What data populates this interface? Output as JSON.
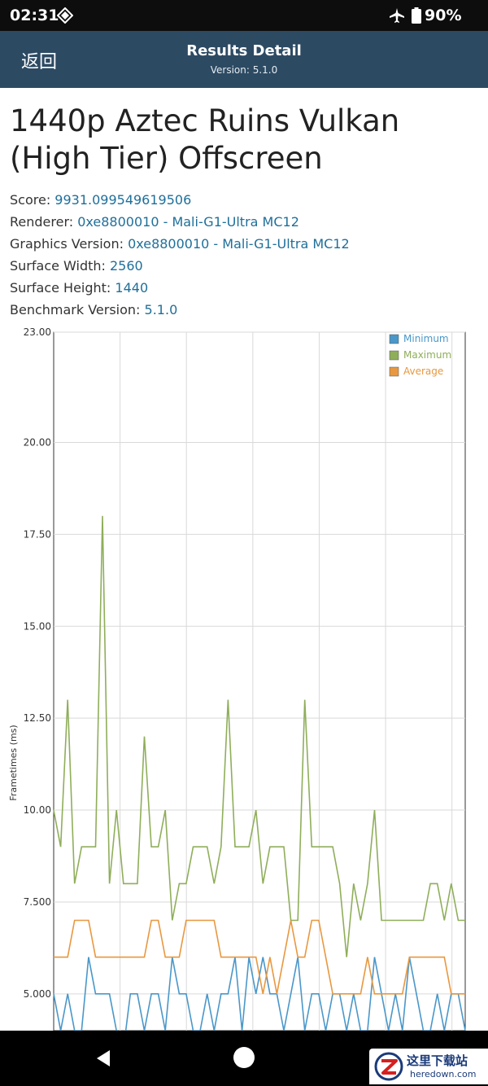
{
  "status_bar": {
    "time": "02:31",
    "battery": "90%"
  },
  "app_bar": {
    "back_label": "返回",
    "title": "Results Detail",
    "version": "Version: 5.1.0"
  },
  "test": {
    "title": "1440p Aztec Ruins Vulkan (High Tier) Offscreen",
    "fields": [
      {
        "label": "Score: ",
        "value": "9931.099549619506"
      },
      {
        "label": "Renderer: ",
        "value": "0xe8800010 - Mali-G1-Ultra MC12"
      },
      {
        "label": "Graphics Version: ",
        "value": "0xe8800010 - Mali-G1-Ultra MC12"
      },
      {
        "label": "Surface Width: ",
        "value": "2560"
      },
      {
        "label": "Surface Height: ",
        "value": "1440"
      },
      {
        "label": "Benchmark Version: ",
        "value": "5.1.0"
      }
    ]
  },
  "chart_data": {
    "type": "line",
    "ylabel": "Frametimes (ms)",
    "yticks": [
      "23.00",
      "20.00",
      "17.50",
      "15.00",
      "12.50",
      "10.00",
      "7.500",
      "5.000"
    ],
    "ylim": [
      4.0,
      23.0
    ],
    "grid": true,
    "legend_position": "top-right",
    "x_count": 60,
    "series": [
      {
        "name": "Minimum",
        "color": "#4a97c9",
        "values": [
          5,
          4,
          5,
          4,
          4,
          6,
          5,
          5,
          5,
          4,
          3.5,
          5,
          5,
          4,
          5,
          5,
          4,
          6,
          5,
          5,
          4,
          4,
          5,
          4,
          5,
          5,
          6,
          4,
          6,
          5,
          6,
          5,
          5,
          4,
          5,
          6,
          4,
          5,
          5,
          4,
          5,
          5,
          4,
          5,
          4,
          4,
          6,
          5,
          4,
          5,
          4,
          6,
          5,
          4,
          4,
          5,
          4,
          5,
          5,
          4
        ]
      },
      {
        "name": "Maximum",
        "color": "#8fae5a",
        "values": [
          10,
          9,
          13,
          8,
          9,
          9,
          9,
          18,
          8,
          10,
          8,
          8,
          8,
          12,
          9,
          9,
          10,
          7,
          8,
          8,
          9,
          9,
          9,
          8,
          9,
          13,
          9,
          9,
          9,
          10,
          8,
          9,
          9,
          9,
          7,
          7,
          13,
          9,
          9,
          9,
          9,
          8,
          6,
          8,
          7,
          8,
          10,
          7,
          7,
          7,
          7,
          7,
          7,
          7,
          8,
          8,
          7,
          8,
          7,
          7
        ]
      },
      {
        "name": "Average",
        "color": "#e89840",
        "values": [
          6,
          6,
          6,
          7,
          7,
          7,
          6,
          6,
          6,
          6,
          6,
          6,
          6,
          6,
          7,
          7,
          6,
          6,
          6,
          7,
          7,
          7,
          7,
          7,
          6,
          6,
          6,
          6,
          6,
          6,
          5,
          6,
          5,
          6,
          7,
          6,
          6,
          7,
          7,
          6,
          5,
          5,
          5,
          5,
          5,
          6,
          5,
          5,
          5,
          5,
          5,
          6,
          6,
          6,
          6,
          6,
          6,
          5,
          5,
          5
        ]
      }
    ]
  },
  "watermark": {
    "name": "这里下载站",
    "url": "heredown.com"
  }
}
